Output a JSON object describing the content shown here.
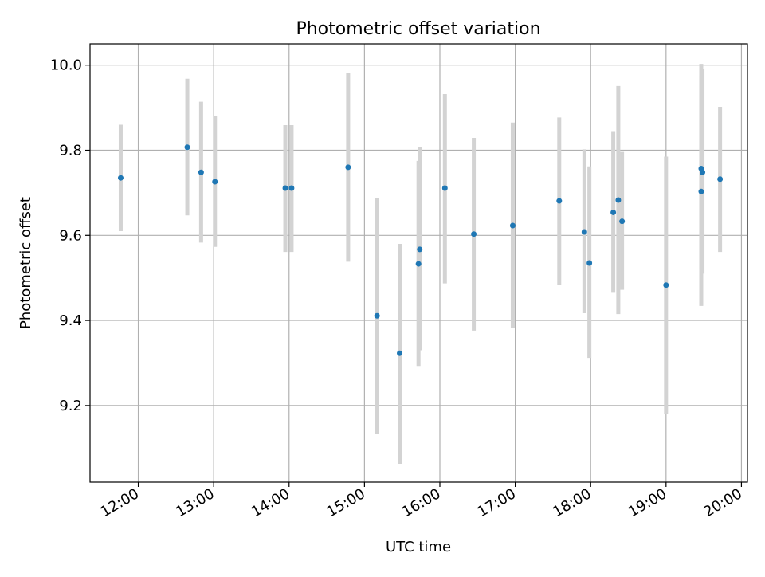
{
  "chart_data": {
    "type": "scatter",
    "title": "Photometric offset variation",
    "xlabel": "UTC time",
    "ylabel": "Photometric offset",
    "x_tick_labels": [
      "12:00",
      "13:00",
      "14:00",
      "15:00",
      "16:00",
      "17:00",
      "18:00",
      "19:00",
      "20:00"
    ],
    "y_tick_labels": [
      "9.2",
      "9.4",
      "9.6",
      "9.8",
      "10.0"
    ],
    "x_ticks_hours": [
      12,
      13,
      14,
      15,
      16,
      17,
      18,
      19,
      20
    ],
    "y_ticks": [
      9.2,
      9.4,
      9.6,
      9.8,
      10.0
    ],
    "xlim_hours": [
      11.36,
      20.08
    ],
    "ylim": [
      9.02,
      10.05
    ],
    "grid": true,
    "colors": {
      "points": "#1f77b4",
      "errorbars": "#d3d3d3",
      "grid": "#b0b0b0"
    },
    "points": [
      {
        "time": "11:46",
        "y": 9.735,
        "yerr_low": 9.61,
        "yerr_high": 9.86
      },
      {
        "time": "12:39",
        "y": 9.807,
        "yerr_low": 9.647,
        "yerr_high": 9.968
      },
      {
        "time": "12:50",
        "y": 9.748,
        "yerr_low": 9.583,
        "yerr_high": 9.914
      },
      {
        "time": "13:01",
        "y": 9.726,
        "yerr_low": 9.573,
        "yerr_high": 9.88
      },
      {
        "time": "13:57",
        "y": 9.711,
        "yerr_low": 9.561,
        "yerr_high": 9.859
      },
      {
        "time": "14:02",
        "y": 9.711,
        "yerr_low": 9.561,
        "yerr_high": 9.859
      },
      {
        "time": "14:47",
        "y": 9.76,
        "yerr_low": 9.538,
        "yerr_high": 9.982
      },
      {
        "time": "15:10",
        "y": 9.411,
        "yerr_low": 9.134,
        "yerr_high": 9.688
      },
      {
        "time": "15:28",
        "y": 9.323,
        "yerr_low": 9.063,
        "yerr_high": 9.58
      },
      {
        "time": "15:43",
        "y": 9.533,
        "yerr_low": 9.293,
        "yerr_high": 9.775
      },
      {
        "time": "15:44",
        "y": 9.567,
        "yerr_low": 9.33,
        "yerr_high": 9.808
      },
      {
        "time": "16:04",
        "y": 9.711,
        "yerr_low": 9.487,
        "yerr_high": 9.932
      },
      {
        "time": "16:27",
        "y": 9.603,
        "yerr_low": 9.376,
        "yerr_high": 9.829
      },
      {
        "time": "16:58",
        "y": 9.623,
        "yerr_low": 9.383,
        "yerr_high": 9.865
      },
      {
        "time": "17:35",
        "y": 9.681,
        "yerr_low": 9.484,
        "yerr_high": 9.877
      },
      {
        "time": "17:55",
        "y": 9.608,
        "yerr_low": 9.417,
        "yerr_high": 9.802
      },
      {
        "time": "17:59",
        "y": 9.535,
        "yerr_low": 9.312,
        "yerr_high": 9.762
      },
      {
        "time": "18:18",
        "y": 9.654,
        "yerr_low": 9.465,
        "yerr_high": 9.843
      },
      {
        "time": "18:22",
        "y": 9.683,
        "yerr_low": 9.415,
        "yerr_high": 9.951
      },
      {
        "time": "18:25",
        "y": 9.633,
        "yerr_low": 9.472,
        "yerr_high": 9.796
      },
      {
        "time": "19:00",
        "y": 9.483,
        "yerr_low": 9.181,
        "yerr_high": 9.785
      },
      {
        "time": "19:28",
        "y": 9.703,
        "yerr_low": 9.434,
        "yerr_high": 9.975
      },
      {
        "time": "19:28",
        "y": 9.757,
        "yerr_low": 9.52,
        "yerr_high": 10.003
      },
      {
        "time": "19:29",
        "y": 9.748,
        "yerr_low": 9.51,
        "yerr_high": 9.99
      },
      {
        "time": "19:43",
        "y": 9.732,
        "yerr_low": 9.561,
        "yerr_high": 9.902
      }
    ]
  }
}
